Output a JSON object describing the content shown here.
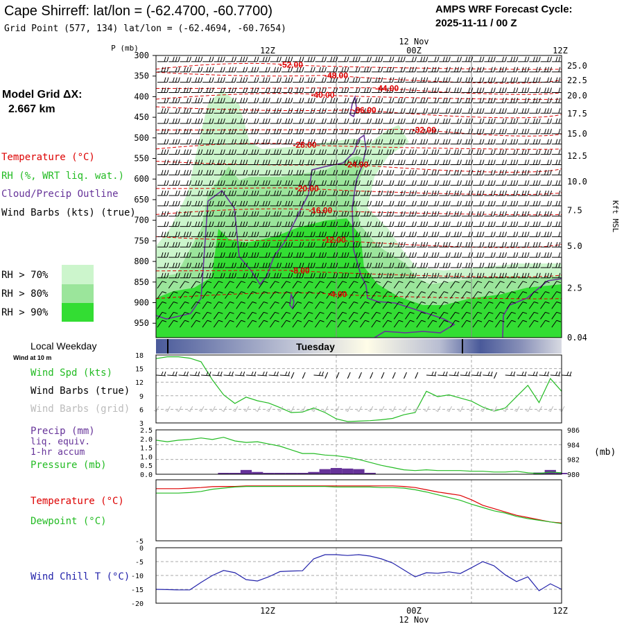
{
  "header": {
    "station_title": "Cape Shirreff:  lat/lon = (-62.4700, -60.7700)",
    "grid_point": "Grid Point (577, 134) lat/lon = (-62.4694, -60.7654)",
    "cycle_label": "AMPS WRF Forecast Cycle:",
    "cycle_value": "2025-11-11 / 00  Z"
  },
  "sidebar": {
    "model_grid_label": "Model Grid ΔX:",
    "model_grid_value": "2.667 km",
    "temperature_legend": "Temperature (°C)",
    "rh_legend": "RH (%, WRT liq. wat.)",
    "cloud_legend": "Cloud/Precip Outline",
    "wind_legend": "Wind Barbs (kts) (true)",
    "rh_keys": [
      {
        "label": "RH > 70%",
        "color": "#ccf5cc"
      },
      {
        "label": "RH > 80%",
        "color": "#9be59b"
      },
      {
        "label": "RH > 90%",
        "color": "#33dd33"
      }
    ]
  },
  "time_axis": {
    "top_date": "12 Nov",
    "top_ticks": [
      "12Z",
      "00Z",
      "12Z"
    ],
    "bottom_ticks": [
      "12Z",
      "00Z",
      "12Z"
    ],
    "bottom_date": "12 Nov"
  },
  "colors": {
    "temperature": "#dd0000",
    "rh": "#22bb22",
    "cloud": "#663399",
    "wind_chill": "#2222aa",
    "grid_barbs": "#bbbbbb",
    "weekday_bar": "#4a5a9a"
  },
  "weekday": {
    "label": "Local Weekday",
    "wind_note": "Wind at 10 m",
    "day": "Tuesday"
  },
  "chart_data": [
    {
      "type": "heatmap",
      "title": "Time-height cross section",
      "ylabel": "P (mb)",
      "y2label": "Kft MSL",
      "pressure_ticks": [
        300,
        350,
        400,
        450,
        500,
        550,
        600,
        650,
        700,
        750,
        800,
        850,
        900,
        950
      ],
      "height_ticks_kft": [
        "25.0",
        "22.5",
        "20.0",
        "17.5",
        "15.0",
        "12.5",
        "10.0",
        "7.5",
        "5.0",
        "2.5",
        "0.04"
      ],
      "height_tick_pressures": [
        325,
        361,
        398,
        441,
        490,
        544,
        606,
        676,
        763,
        865,
        985
      ],
      "temperature_contours": [
        {
          "label": "-52.00",
          "time_h": 12,
          "p": 323
        },
        {
          "label": "-48.00",
          "time_h": 16,
          "p": 349
        },
        {
          "label": "-44.00",
          "time_h": 20.5,
          "p": 380
        },
        {
          "label": "-40.00",
          "time_h": 14.8,
          "p": 396
        },
        {
          "label": "-36.00",
          "time_h": 18.5,
          "p": 433
        },
        {
          "label": "-32.00",
          "time_h": 23.8,
          "p": 481
        },
        {
          "label": "-28.00",
          "time_h": 13.2,
          "p": 517
        },
        {
          "label": "-24.00",
          "time_h": 17.8,
          "p": 565
        },
        {
          "label": "-20.00",
          "time_h": 13.4,
          "p": 623
        },
        {
          "label": "-16.00",
          "time_h": 14.6,
          "p": 676
        },
        {
          "label": "-12.00",
          "time_h": 15.8,
          "p": 748
        },
        {
          "label": "-8.00",
          "time_h": 12.8,
          "p": 823
        },
        {
          "label": "-4.00",
          "time_h": 16.1,
          "p": 880
        }
      ],
      "wind_barbs_kts_true": {
        "time_h": [
          0,
          1,
          2,
          3,
          4,
          5,
          6,
          7,
          8,
          9,
          10,
          11,
          12,
          13,
          14,
          15,
          16,
          17,
          18,
          19,
          20,
          21,
          22,
          23,
          24,
          25,
          26,
          27,
          28,
          29,
          30,
          31,
          32,
          33,
          34,
          35,
          36
        ],
        "levels_mb": [
          315,
          340,
          365,
          390,
          415,
          440,
          465,
          490,
          515,
          540,
          565,
          590,
          615,
          640,
          665,
          690,
          715,
          740,
          765,
          790,
          815,
          840,
          865,
          890,
          915,
          940,
          960
        ]
      },
      "wind_barb_note": "one barb per hour on each of the listed pressure levels"
    },
    {
      "type": "line",
      "title": "Surface wind",
      "labels": [
        "Wind Spd (kts)",
        "Wind Barbs (true)",
        "Wind Barbs (grid)"
      ],
      "y_ticks": [
        3,
        6,
        9,
        12,
        15,
        18
      ],
      "ylim": [
        3,
        18
      ],
      "x": [
        0,
        1,
        2,
        3,
        4,
        5,
        6,
        7,
        8,
        9,
        10,
        11,
        12,
        13,
        14,
        15,
        16,
        17,
        18,
        19,
        20,
        21,
        22,
        23,
        24,
        25,
        26,
        27,
        28,
        29,
        30,
        31,
        32,
        33,
        34,
        35,
        36
      ],
      "wind_speed_kts": [
        17.2,
        17.6,
        17.6,
        17.3,
        16.5,
        12.5,
        9.2,
        7.3,
        8.7,
        7.9,
        7.4,
        6.4,
        5.3,
        5.4,
        6.3,
        5.3,
        3.9,
        3.3,
        3.4,
        3.5,
        3.7,
        4.0,
        4.8,
        5.3,
        10.0,
        8.8,
        9.2,
        8.5,
        7.8,
        6.5,
        5.6,
        6.3,
        8.8,
        11.3,
        7.5,
        12.8,
        10.0
      ]
    },
    {
      "type": "line",
      "title": "Precip and pressure",
      "labels": [
        "Precip (mm)",
        "liq. equiv.",
        "1-hr accum",
        "Pressure (mb)"
      ],
      "y_ticks": [
        "0.0",
        "0.5",
        "1.0",
        "1.5",
        "2.0",
        "2.5"
      ],
      "ylim": [
        0,
        2.5
      ],
      "y2_ticks": [
        980,
        982,
        984,
        986
      ],
      "y2lim": [
        980,
        986
      ],
      "y2label": "(mb)",
      "x": [
        0,
        1,
        2,
        3,
        4,
        5,
        6,
        7,
        8,
        9,
        10,
        11,
        12,
        13,
        14,
        15,
        16,
        17,
        18,
        19,
        20,
        21,
        22,
        23,
        24,
        25,
        26,
        27,
        28,
        29,
        30,
        31,
        32,
        33,
        34,
        35,
        36
      ],
      "pressure_mb": [
        984.6,
        984.4,
        984.6,
        984.7,
        984.9,
        984.7,
        985.0,
        984.5,
        984.3,
        984.4,
        984.1,
        983.8,
        983.3,
        982.8,
        982.8,
        982.6,
        982.5,
        982.3,
        982.0,
        981.6,
        981.2,
        980.9,
        980.6,
        980.5,
        980.6,
        980.5,
        980.5,
        980.5,
        980.4,
        980.4,
        980.3,
        980.3,
        980.4,
        980.2,
        980.1,
        980.3,
        980.2
      ],
      "precip_mm": [
        0,
        0,
        0,
        0,
        0,
        0,
        0.02,
        0.03,
        0.15,
        0.08,
        0.02,
        0.02,
        0.03,
        0.03,
        0.08,
        0.18,
        0.22,
        0.2,
        0.18,
        0.05,
        0,
        0,
        0,
        0,
        0,
        0,
        0,
        0,
        0,
        0,
        0,
        0,
        0,
        0,
        0.06,
        0.15,
        0.02
      ]
    },
    {
      "type": "line",
      "title": "Temperature and dewpoint",
      "labels": [
        "Temperature (°C)",
        "Dewpoint (°C)"
      ],
      "y_ticks": [
        "-5"
      ],
      "ylim": [
        -5,
        0.5
      ],
      "x": [
        0,
        1,
        2,
        3,
        4,
        5,
        6,
        7,
        8,
        9,
        10,
        11,
        12,
        13,
        14,
        15,
        16,
        17,
        18,
        19,
        20,
        21,
        22,
        23,
        24,
        25,
        26,
        27,
        28,
        29,
        30,
        31,
        32,
        33,
        34,
        35,
        36
      ],
      "temperature_c": [
        -0.3,
        -0.3,
        -0.3,
        -0.25,
        -0.2,
        -0.12,
        -0.1,
        -0.1,
        -0.05,
        -0.05,
        -0.05,
        -0.05,
        -0.05,
        -0.05,
        -0.05,
        -0.05,
        -0.05,
        -0.05,
        -0.05,
        -0.05,
        -0.05,
        -0.05,
        -0.1,
        -0.2,
        -0.4,
        -0.6,
        -0.75,
        -0.9,
        -1.3,
        -1.8,
        -2.1,
        -2.4,
        -2.7,
        -2.9,
        -3.1,
        -3.3,
        -3.4
      ],
      "dewpoint_c": [
        -0.7,
        -0.7,
        -0.7,
        -0.65,
        -0.55,
        -0.35,
        -0.25,
        -0.15,
        -0.1,
        -0.1,
        -0.1,
        -0.1,
        -0.1,
        -0.1,
        -0.1,
        -0.1,
        -0.15,
        -0.15,
        -0.15,
        -0.15,
        -0.2,
        -0.2,
        -0.25,
        -0.4,
        -0.6,
        -0.85,
        -1.1,
        -1.35,
        -1.7,
        -2.0,
        -2.3,
        -2.5,
        -2.8,
        -3.0,
        -3.15,
        -3.3,
        -3.45
      ]
    },
    {
      "type": "line",
      "title": "Wind chill",
      "labels": [
        "Wind Chill T (°C)"
      ],
      "y_ticks": [
        -20,
        -15,
        -10,
        -5,
        0
      ],
      "ylim": [
        -20,
        0
      ],
      "x": [
        0,
        1,
        2,
        3,
        4,
        5,
        6,
        7,
        8,
        9,
        10,
        11,
        12,
        13,
        14,
        15,
        16,
        17,
        18,
        19,
        20,
        21,
        22,
        23,
        24,
        25,
        26,
        27,
        28,
        29,
        30,
        31,
        32,
        33,
        34,
        35,
        36
      ],
      "wind_chill_c": [
        -15.0,
        -15.1,
        -15.2,
        -15.2,
        -12.5,
        -10.0,
        -8.2,
        -9.0,
        -11.5,
        -12.0,
        -10.5,
        -8.6,
        -8.4,
        -8.3,
        -4.0,
        -2.5,
        -2.5,
        -2.8,
        -2.5,
        -3.0,
        -4.0,
        -5.5,
        -8.0,
        -10.5,
        -9.0,
        -9.2,
        -8.7,
        -9.3,
        -7.2,
        -5.0,
        -6.5,
        -9.8,
        -12.2,
        -10.5,
        -15.5,
        -13.0,
        -15.0
      ]
    }
  ]
}
